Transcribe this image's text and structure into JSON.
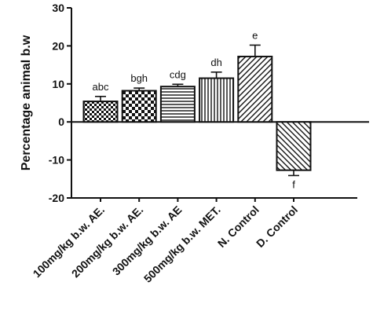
{
  "chart_data": {
    "type": "bar",
    "title": "",
    "xlabel": "",
    "ylabel": "Percentage animal b.w",
    "ylim": [
      -20,
      30
    ],
    "yticks": [
      -20,
      -10,
      0,
      10,
      20,
      30
    ],
    "grid": false,
    "legend": "none",
    "categories": [
      "100mg/kg b.w. AE.",
      "200mg/kg b.w. AE.",
      "300mg/kg b.w. AE",
      "500mg/kg b.w. MET.",
      "N. Control",
      "D. Control"
    ],
    "values": [
      5.4,
      8.2,
      9.3,
      11.5,
      17.2,
      -12.7
    ],
    "errors": [
      1.3,
      0.7,
      0.6,
      1.6,
      3.0,
      1.4
    ],
    "significance_labels": [
      "abc",
      "bgh",
      "cdg",
      "dh",
      "e",
      "f"
    ],
    "patterns": [
      "checker-small",
      "checker-large",
      "horizontal-lines",
      "vertical-lines",
      "diagonal-up",
      "diagonal-down"
    ]
  }
}
